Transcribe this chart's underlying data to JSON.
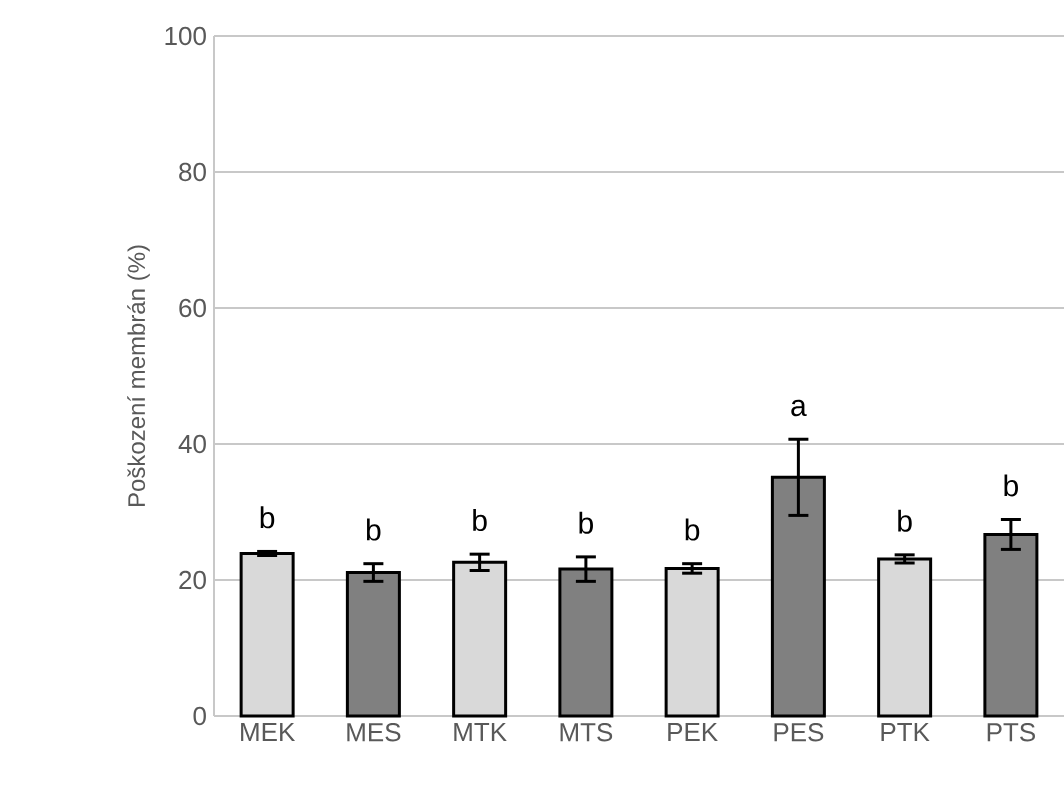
{
  "chart_data": {
    "type": "bar",
    "ylabel": "Poškození membrán (%)",
    "categories": [
      "MEK",
      "MES",
      "MTK",
      "MTS",
      "PEK",
      "PES",
      "PTK",
      "PTS"
    ],
    "values": [
      23.9,
      21.1,
      22.6,
      21.6,
      21.7,
      35.1,
      23.1,
      26.7
    ],
    "errors": [
      0.3,
      1.3,
      1.2,
      1.8,
      0.7,
      5.6,
      0.6,
      2.2
    ],
    "colors": [
      "#d9d9d9",
      "#808080",
      "#d9d9d9",
      "#808080",
      "#d9d9d9",
      "#808080",
      "#d9d9d9",
      "#808080"
    ],
    "ylim": [
      0,
      100
    ],
    "yticks": [
      0,
      20,
      40,
      60,
      80,
      100
    ],
    "grid": "y",
    "annotations": [
      "b",
      "b",
      "b",
      "b",
      "b",
      "a",
      "b",
      "b"
    ]
  }
}
